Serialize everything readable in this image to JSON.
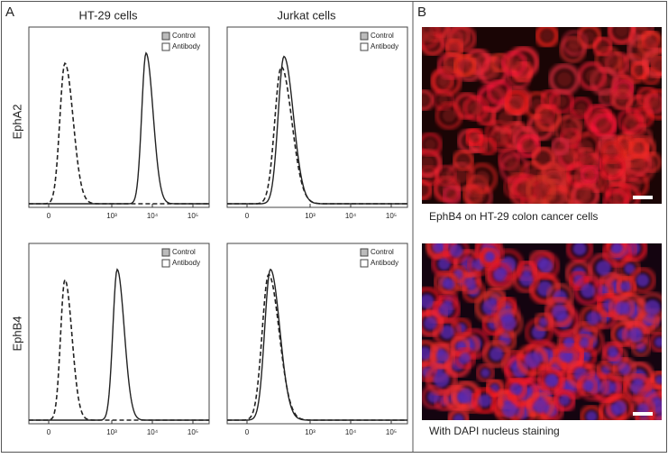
{
  "panel_a": {
    "label": "A",
    "columns": [
      "HT-29 cells",
      "Jurkat cells"
    ],
    "rows": [
      "EphA2",
      "EphB4"
    ],
    "plots": [
      {
        "legend": [
          "Control",
          "Antibody"
        ],
        "x_tick_labels": [
          "0",
          "10³",
          "10⁴",
          "10⁵"
        ]
      },
      {
        "legend": [
          "Control",
          "Antibody"
        ],
        "x_tick_labels": [
          "0",
          "10³",
          "10⁴",
          "10⁵"
        ]
      },
      {
        "legend": [
          "Control",
          "Antibody"
        ],
        "x_tick_labels": [
          "0",
          "10³",
          "10⁴",
          "10⁵"
        ]
      },
      {
        "legend": [
          "Control",
          "Antibody"
        ],
        "x_tick_labels": [
          "0",
          "10³",
          "10⁴",
          "10⁵"
        ]
      }
    ]
  },
  "panel_b": {
    "label": "B",
    "images": [
      {
        "caption": "EphB4 on HT-29 colon cancer cells"
      },
      {
        "caption": "With DAPI nucleus staining"
      }
    ]
  }
}
